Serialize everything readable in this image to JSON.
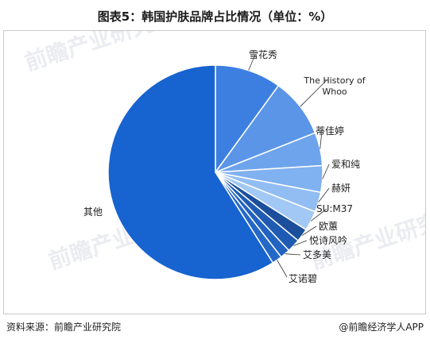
{
  "page": {
    "title": "图表5：韩国护肤品牌占比情况（单位：%）",
    "source": "资料来源：前瞻产业研究院",
    "brand": "@前瞻经济学人APP",
    "watermark": "前瞻产业研究院"
  },
  "chart_data": {
    "type": "pie",
    "title": "图表5：韩国护肤品牌占比情况（单位：%）",
    "unit": "%",
    "slices": [
      {
        "label": "雪花秀",
        "value": 10.0,
        "color": "#3d7fe0"
      },
      {
        "label": "The History of Whoo",
        "value": 9.0,
        "color": "#5b95e8"
      },
      {
        "label": "蒂佳婷",
        "value": 5.0,
        "color": "#6ea4ec"
      },
      {
        "label": "爱和纯",
        "value": 4.0,
        "color": "#80b1f0"
      },
      {
        "label": "赫妍",
        "value": 3.0,
        "color": "#92bdf3"
      },
      {
        "label": "SU:M37",
        "value": 3.0,
        "color": "#a2c8f5"
      },
      {
        "label": "欧蕙",
        "value": 2.0,
        "color": "#1b4f9c"
      },
      {
        "label": "悦诗风吟",
        "value": 2.0,
        "color": "#1f5bb3"
      },
      {
        "label": "艾多美",
        "value": 1.5,
        "color": "#2263c2"
      },
      {
        "label": "艾诺碧",
        "value": 1.5,
        "color": "#2468c8"
      },
      {
        "label": "其他",
        "value": 59.0,
        "color": "#1763cf"
      }
    ]
  }
}
